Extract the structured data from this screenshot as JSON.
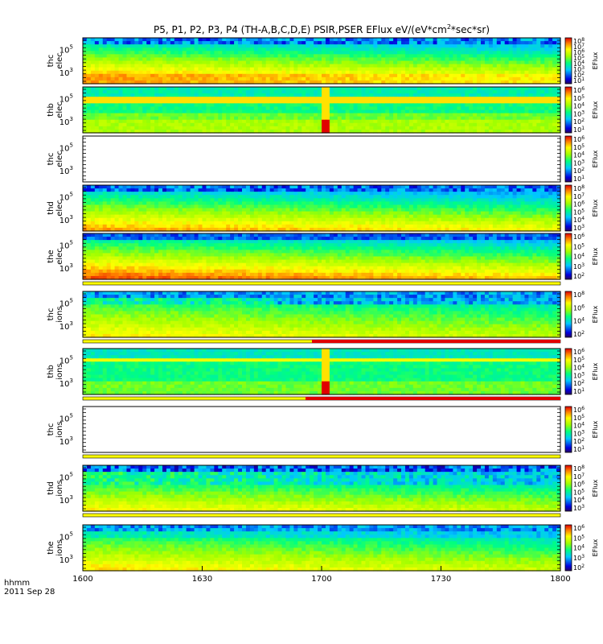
{
  "chart_data": {
    "type": "heatmap",
    "title": "P5, P1, P2, P3, P4 (TH-A,B,C,D,E) PSIR,PSER EFlux eV/(eV*cm",
    "title_sup": "2",
    "title_suffix": "*sec*sr)",
    "x_axis": {
      "label_line1": "hhmm",
      "label_line2": "2011 Sep 28",
      "ticks": [
        "1600",
        "1630",
        "1700",
        "1730",
        "1800"
      ],
      "range": [
        1600,
        1800
      ]
    },
    "colorbar_label": "EFlux",
    "panels": [
      {
        "probe": "thc",
        "species": "elec",
        "y_ticks": [
          "10",
          "10"
        ],
        "y_exp": [
          "5",
          "3"
        ],
        "cb_exps": [
          "8",
          "7",
          "6",
          "5",
          "4",
          "3",
          "2",
          "1"
        ],
        "profile": "elecA",
        "flag": "none"
      },
      {
        "probe": "thb",
        "species": "elec",
        "y_ticks": [
          "10",
          "10"
        ],
        "y_exp": [
          "5",
          "3"
        ],
        "cb_exps": [
          "6",
          "5",
          "4",
          "3",
          "2",
          "1"
        ],
        "profile": "elecB",
        "flag": "none"
      },
      {
        "probe": "thc",
        "species": "elec",
        "y_ticks": [
          "10",
          "10"
        ],
        "y_exp": [
          "5",
          "3"
        ],
        "cb_exps": [
          "6",
          "5",
          "4",
          "3",
          "2",
          "1"
        ],
        "profile": "empty",
        "flag": "none"
      },
      {
        "probe": "thd",
        "species": "elec",
        "y_ticks": [
          "10",
          "10"
        ],
        "y_exp": [
          "5",
          "3"
        ],
        "cb_exps": [
          "8",
          "7",
          "6",
          "5",
          "4",
          "3"
        ],
        "profile": "elecD",
        "flag": "none"
      },
      {
        "probe": "the",
        "species": "elec",
        "y_ticks": [
          "10",
          "10"
        ],
        "y_exp": [
          "5",
          "3"
        ],
        "cb_exps": [
          "6",
          "5",
          "4",
          "3",
          "2"
        ],
        "profile": "elecE",
        "flag": "yellow"
      },
      {
        "probe": "thc",
        "species": "ions",
        "y_ticks": [
          "10",
          "10"
        ],
        "y_exp": [
          "5",
          "3"
        ],
        "cb_exps": [
          "8",
          "6",
          "4",
          "2"
        ],
        "profile": "ionsC",
        "flag": "redhalf"
      },
      {
        "probe": "thb",
        "species": "ions",
        "y_ticks": [
          "10",
          "10"
        ],
        "y_exp": [
          "5",
          "3"
        ],
        "cb_exps": [
          "6",
          "5",
          "4",
          "3",
          "2",
          "1"
        ],
        "profile": "ionsB",
        "flag": "redhalf2"
      },
      {
        "probe": "thc",
        "species": "ions",
        "y_ticks": [
          "10",
          "10"
        ],
        "y_exp": [
          "5",
          "3"
        ],
        "cb_exps": [
          "6",
          "5",
          "4",
          "3",
          "2",
          "1"
        ],
        "profile": "empty",
        "flag": "yellow"
      },
      {
        "probe": "thd",
        "species": "ions",
        "y_ticks": [
          "10",
          "10"
        ],
        "y_exp": [
          "5",
          "3"
        ],
        "cb_exps": [
          "8",
          "7",
          "6",
          "5",
          "4",
          "3"
        ],
        "profile": "ionsD",
        "flag": "yellow"
      },
      {
        "probe": "the",
        "species": "ions",
        "y_ticks": [
          "10",
          "10"
        ],
        "y_exp": [
          "5",
          "3"
        ],
        "cb_exps": [
          "6",
          "5",
          "4",
          "3",
          "2"
        ],
        "profile": "ionsE",
        "flag": "none"
      }
    ]
  }
}
